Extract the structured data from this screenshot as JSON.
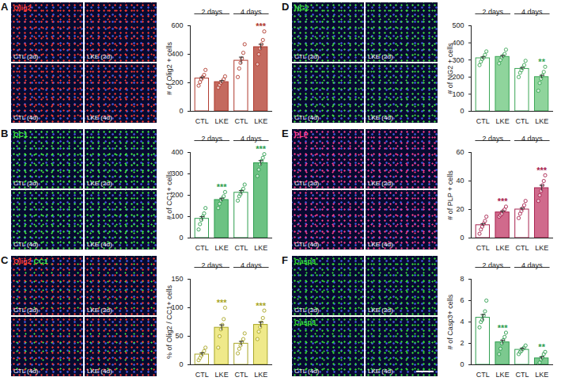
{
  "chart_data": [
    {
      "type": "bar",
      "panel_label": "A",
      "image_labels": [
        {
          "condition": "CTL (2d)",
          "stain": [
            {
              "text": "Olig2",
              "color": "#ff3a30"
            }
          ]
        },
        {
          "condition": "LKE (2d)"
        },
        {
          "condition": "CTL (4d)"
        },
        {
          "condition": "LKE (4d)"
        }
      ],
      "ylabel": "# of Olig2 + cells",
      "group_labels": [
        "2 days",
        "4 days"
      ],
      "categories": [
        "CTL",
        "LKE",
        "CTL",
        "LKE"
      ],
      "values": [
        230,
        205,
        355,
        450
      ],
      "errors": [
        10,
        10,
        25,
        20
      ],
      "points": [
        [
          180,
          205,
          225,
          240,
          255,
          290
        ],
        [
          165,
          185,
          200,
          210,
          225,
          245
        ],
        [
          240,
          300,
          340,
          370,
          410,
          470
        ],
        [
          330,
          400,
          440,
          470,
          500,
          560
        ]
      ],
      "annotations": [
        null,
        null,
        null,
        "***"
      ],
      "color": "#b03a2e",
      "colors": [
        "#ffffff",
        "#c46a5f",
        "#ffffff",
        "#c46a5f"
      ],
      "ylim": [
        0,
        600
      ],
      "yticks": [
        0,
        200,
        400,
        600
      ]
    },
    {
      "type": "bar",
      "panel_label": "B",
      "image_labels": [
        {
          "condition": "CTL (2d)",
          "stain": [
            {
              "text": "CC1",
              "color": "#40f040"
            }
          ]
        },
        {
          "condition": "LKE (2d)"
        },
        {
          "condition": "CTL (4d)"
        },
        {
          "condition": "LKE (4d)"
        }
      ],
      "ylabel": "# of CC1+ cells",
      "group_labels": [
        "2 days",
        "4 days"
      ],
      "categories": [
        "CTL",
        "LKE",
        "CTL",
        "LKE"
      ],
      "values": [
        90,
        178,
        212,
        350
      ],
      "errors": [
        10,
        8,
        10,
        12
      ],
      "points": [
        [
          40,
          65,
          85,
          100,
          115,
          140
        ],
        [
          140,
          160,
          175,
          185,
          195,
          215
        ],
        [
          175,
          195,
          205,
          220,
          230,
          250
        ],
        [
          290,
          320,
          345,
          360,
          375,
          392
        ]
      ],
      "annotations": [
        null,
        "***",
        null,
        "***"
      ],
      "color": "#2e9e4f",
      "colors": [
        "#ffffff",
        "#6cc283",
        "#ffffff",
        "#6cc283"
      ],
      "ylim": [
        0,
        400
      ],
      "yticks": [
        0,
        100,
        200,
        300,
        400
      ]
    },
    {
      "type": "bar",
      "panel_label": "C",
      "image_labels": [
        {
          "condition": "CTL (2d)",
          "stain": [
            {
              "text": "Olig2",
              "color": "#ff3a30"
            },
            {
              "text": "CC1",
              "color": "#40f040"
            }
          ]
        },
        {
          "condition": "LKE (2d)"
        },
        {
          "condition": "CTL (4d)"
        },
        {
          "condition": "LKE (4d)"
        }
      ],
      "ylabel": "% of Olig2 / CC1+ cells",
      "group_labels": [
        "2 days",
        "4 days"
      ],
      "categories": [
        "CTL",
        "LKE",
        "CTL",
        "LKE"
      ],
      "values": [
        18,
        65,
        37,
        70
      ],
      "errors": [
        3,
        5,
        4,
        5
      ],
      "points": [
        [
          8,
          12,
          16,
          20,
          24,
          30
        ],
        [
          30,
          50,
          62,
          70,
          80,
          100
        ],
        [
          20,
          28,
          34,
          40,
          45,
          55
        ],
        [
          45,
          58,
          66,
          74,
          82,
          95
        ]
      ],
      "annotations": [
        null,
        "***",
        null,
        "***"
      ],
      "color": "#a9a626",
      "colors": [
        "#ffffff",
        "#efe98a",
        "#ffffff",
        "#efe98a"
      ],
      "ylim": [
        0,
        150
      ],
      "yticks": [
        0,
        50,
        100,
        150
      ]
    },
    {
      "type": "bar",
      "panel_label": "D",
      "image_labels": [
        {
          "condition": "CTL (2d)",
          "stain": [
            {
              "text": "NG2",
              "color": "#40e040"
            }
          ]
        },
        {
          "condition": "LKE (2d)"
        },
        {
          "condition": "CTL (4d)"
        },
        {
          "condition": "LKE (4d)"
        }
      ],
      "ylabel": "# of NG2 + cells",
      "group_labels": [
        "2 days",
        "4 days"
      ],
      "categories": [
        "CTL",
        "LKE",
        "CTL",
        "LKE"
      ],
      "values": [
        310,
        318,
        248,
        200
      ],
      "errors": [
        8,
        8,
        8,
        10
      ],
      "points": [
        [
          270,
          290,
          305,
          315,
          330,
          350
        ],
        [
          280,
          300,
          315,
          325,
          335,
          360
        ],
        [
          200,
          225,
          240,
          255,
          270,
          295
        ],
        [
          120,
          165,
          190,
          210,
          230,
          260
        ]
      ],
      "annotations": [
        null,
        null,
        null,
        "**"
      ],
      "color": "#3aa655",
      "colors": [
        "#ffffff",
        "#8fd49c",
        "#ffffff",
        "#8fd49c"
      ],
      "ylim": [
        0,
        500
      ],
      "yticks": [
        0,
        100,
        200,
        300,
        400,
        500
      ]
    },
    {
      "type": "bar",
      "panel_label": "E",
      "image_labels": [
        {
          "condition": "CTL (2d)",
          "stain": [
            {
              "text": "PLP",
              "color": "#ff3c8c"
            }
          ]
        },
        {
          "condition": "LKE (2d)"
        },
        {
          "condition": "CTL (4d)"
        },
        {
          "condition": "LKE (4d)"
        }
      ],
      "ylabel": "# of PLP + cells",
      "group_labels": [
        "2 days",
        "4 days"
      ],
      "categories": [
        "CTL",
        "LKE",
        "CTL",
        "LKE"
      ],
      "values": [
        9,
        18,
        20,
        35
      ],
      "errors": [
        1,
        1,
        1,
        2
      ],
      "points": [
        [
          3,
          6,
          8,
          10,
          12,
          15
        ],
        [
          15,
          16,
          17,
          19,
          20,
          22
        ],
        [
          14,
          17,
          19,
          21,
          23,
          26
        ],
        [
          26,
          30,
          33,
          37,
          40,
          44
        ]
      ],
      "annotations": [
        null,
        "***",
        null,
        "***"
      ],
      "color": "#a8234f",
      "colors": [
        "#ffffff",
        "#d06a8c",
        "#ffffff",
        "#d06a8c"
      ],
      "ylim": [
        0,
        60
      ],
      "yticks": [
        0,
        20,
        40,
        60
      ]
    },
    {
      "type": "bar",
      "panel_label": "F",
      "image_labels": [
        {
          "condition": "CTL (2d)",
          "stain": [
            {
              "text": "Casp3",
              "color": "#34e034"
            }
          ]
        },
        {
          "condition": "LKE (2d)"
        },
        {
          "condition": "CTL (4d)",
          "stain": [
            {
              "text": "Casp3",
              "color": "#34e034"
            }
          ]
        },
        {
          "condition": "LKE (4d)"
        }
      ],
      "ylabel": "# of Casp3+ cells",
      "group_labels": [
        "2 days",
        "4 days"
      ],
      "categories": [
        "CTL",
        "LKE",
        "CTL",
        "LKE"
      ],
      "values": [
        4.4,
        2.1,
        1.4,
        0.6
      ],
      "errors": [
        0.3,
        0.2,
        0.15,
        0.15
      ],
      "points": [
        [
          3.5,
          4,
          4.2,
          4.6,
          5,
          6
        ],
        [
          1,
          1.5,
          2,
          2.3,
          2.6,
          3
        ],
        [
          1,
          1.2,
          1.3,
          1.5,
          1.6,
          1.8
        ],
        [
          0,
          0.2,
          0.5,
          0.7,
          1,
          1.2
        ]
      ],
      "annotations": [
        null,
        "***",
        null,
        "**"
      ],
      "color": "#2e9e4f",
      "colors": [
        "#ffffff",
        "#7cc98f",
        "#ffffff",
        "#7cc98f"
      ],
      "ylim": [
        0,
        8
      ],
      "yticks": [
        0,
        2,
        4,
        6,
        8
      ]
    }
  ]
}
